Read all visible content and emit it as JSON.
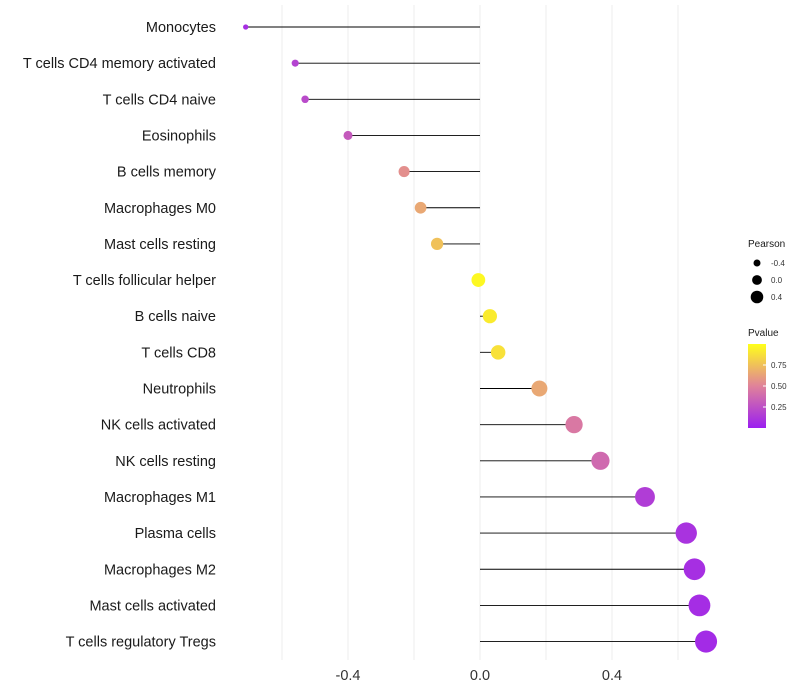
{
  "chart_data": {
    "type": "lollipop",
    "categories": [
      "Monocytes",
      "T cells CD4 memory activated",
      "T cells CD4 naive",
      "Eosinophils",
      "B cells memory",
      "Macrophages M0",
      "Mast cells resting",
      "T cells follicular helper",
      "B cells naive",
      "T cells CD8",
      "Neutrophils",
      "NK cells activated",
      "NK cells resting",
      "Macrophages M1",
      "Plasma cells",
      "Macrophages M2",
      "Mast cells activated",
      "T cells regulatory  Tregs"
    ],
    "values": [
      -0.71,
      -0.56,
      -0.53,
      -0.4,
      -0.23,
      -0.18,
      -0.13,
      -0.005,
      0.03,
      0.055,
      0.18,
      0.285,
      0.365,
      0.5,
      0.625,
      0.65,
      0.665,
      0.685
    ],
    "pvalues": [
      0.08,
      0.18,
      0.22,
      0.3,
      0.55,
      0.65,
      0.75,
      0.97,
      0.92,
      0.88,
      0.65,
      0.45,
      0.38,
      0.15,
      0.1,
      0.08,
      0.07,
      0.06
    ],
    "xlim": [
      -0.72,
      0.72
    ],
    "xticks": [
      -0.4,
      0.0,
      0.4
    ],
    "xtick_labels": [
      "-0.4",
      "0.0",
      "0.4"
    ],
    "xlabel": "",
    "ylabel": "",
    "legend": {
      "size_title": "Pearson",
      "size_entries": [
        {
          "label": "-0.4",
          "value": -0.4
        },
        {
          "label": "0.0",
          "value": 0.0
        },
        {
          "label": "0.4",
          "value": 0.4
        }
      ],
      "color_title": "Pvalue",
      "color_ticks": [
        {
          "label": "0.75",
          "value": 0.75
        },
        {
          "label": "0.50",
          "value": 0.5
        },
        {
          "label": "0.25",
          "value": 0.25
        }
      ],
      "color_range": [
        0.0,
        1.0
      ],
      "colors": {
        "low": "#9b1ff0",
        "mid": "#e0829a",
        "high": "#ffff1a"
      }
    },
    "colors": {
      "stem": "#000000",
      "grid": "#ececec"
    }
  }
}
